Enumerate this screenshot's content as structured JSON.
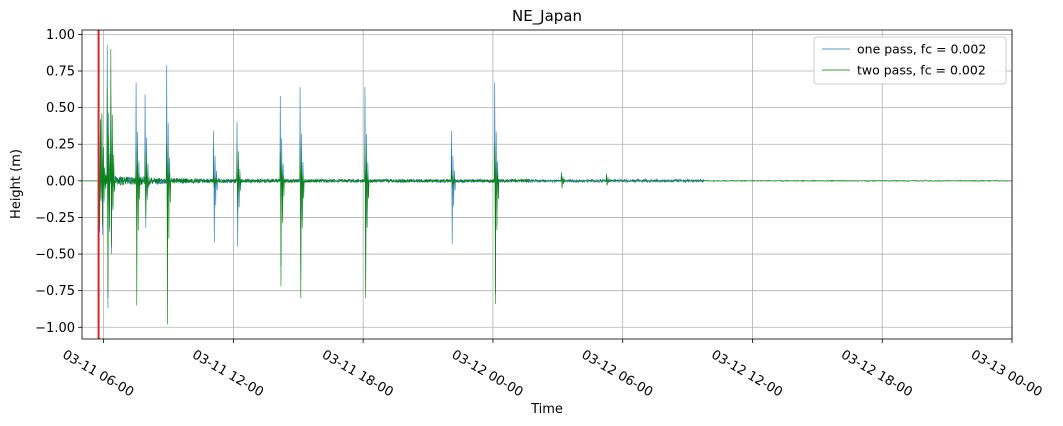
{
  "chart_data": {
    "type": "line",
    "title": "NE_Japan",
    "xlabel": "Time",
    "ylabel": "Height (m)",
    "x_axis": {
      "kind": "datetime",
      "range": [
        "2011-03-11 05:00",
        "2011-03-13 00:00"
      ],
      "ticks": [
        "2011-03-11 06:00",
        "2011-03-11 12:00",
        "2011-03-11 18:00",
        "2011-03-12 00:00",
        "2011-03-12 06:00",
        "2011-03-12 12:00",
        "2011-03-12 18:00",
        "2011-03-13 00:00"
      ],
      "tick_labels": [
        "03-11 06-00",
        "03-11 12-00",
        "03-11 18-00",
        "03-12 00-00",
        "03-12 06-00",
        "03-12 12-00",
        "03-12 18-00",
        "03-13 00-00"
      ]
    },
    "y_axis": {
      "range": [
        -1.08,
        1.03
      ],
      "ticks": [
        -1.0,
        -0.75,
        -0.5,
        -0.25,
        0.0,
        0.25,
        0.5,
        0.75,
        1.0
      ],
      "tick_labels": [
        "−1.00",
        "−0.75",
        "−0.50",
        "−0.25",
        "0.00",
        "0.25",
        "0.50",
        "0.75",
        "1.00"
      ]
    },
    "grid": true,
    "legend_position": "top-right",
    "event_marker": {
      "time": "2011-03-11 05:46",
      "color": "#d62728"
    },
    "series": [
      {
        "name": "one pass, fc = 0.002",
        "color": "#1f77b4",
        "line_width": 0.6,
        "data_end": "2011-03-12 09:45",
        "noise": 0.012,
        "spikes": [
          [
            "2011-03-11 05:47",
            0.84,
            -0.35
          ],
          [
            "2011-03-11 05:55",
            0.45,
            -0.37
          ],
          [
            "2011-03-11 06:10",
            0.93,
            -0.87
          ],
          [
            "2011-03-11 06:20",
            0.58,
            -0.5
          ],
          [
            "2011-03-11 07:30",
            0.67,
            -0.28
          ],
          [
            "2011-03-11 07:55",
            0.59,
            -0.32
          ],
          [
            "2011-03-11 08:55",
            0.79,
            -0.36
          ],
          [
            "2011-03-11 11:05",
            0.34,
            -0.42
          ],
          [
            "2011-03-11 12:10",
            0.4,
            -0.45
          ],
          [
            "2011-03-11 14:10",
            0.58,
            -0.58
          ],
          [
            "2011-03-11 15:05",
            0.64,
            -0.68
          ],
          [
            "2011-03-11 18:05",
            0.64,
            -0.73
          ],
          [
            "2011-03-11 22:05",
            0.34,
            -0.43
          ],
          [
            "2011-03-12 00:05",
            0.67,
            -0.77
          ],
          [
            "2011-03-12 03:10",
            0.06,
            -0.05
          ],
          [
            "2011-03-12 05:15",
            0.05,
            -0.03
          ]
        ]
      },
      {
        "name": "two pass, fc = 0.002",
        "color": "#008000",
        "line_width": 0.6,
        "data_end": "2011-03-13 00:00",
        "noise": 0.01,
        "spikes": [
          [
            "2011-03-11 05:47",
            0.84,
            -0.3
          ],
          [
            "2011-03-11 05:55",
            0.46,
            -0.3
          ],
          [
            "2011-03-11 06:10",
            0.63,
            -0.8
          ],
          [
            "2011-03-11 06:20",
            0.9,
            -0.45
          ],
          [
            "2011-03-11 07:30",
            0.22,
            -0.85
          ],
          [
            "2011-03-11 07:55",
            0.2,
            -0.25
          ],
          [
            "2011-03-11 08:55",
            0.25,
            -0.98
          ],
          [
            "2011-03-11 11:05",
            0.05,
            -0.05
          ],
          [
            "2011-03-11 12:10",
            0.2,
            -0.2
          ],
          [
            "2011-03-11 14:10",
            0.2,
            -0.72
          ],
          [
            "2011-03-11 15:05",
            0.22,
            -0.8
          ],
          [
            "2011-03-11 18:05",
            0.24,
            -0.8
          ],
          [
            "2011-03-11 22:05",
            0.08,
            -0.05
          ],
          [
            "2011-03-12 00:05",
            0.24,
            -0.84
          ],
          [
            "2011-03-12 03:10",
            0.05,
            -0.05
          ],
          [
            "2011-03-12 05:15",
            0.04,
            -0.03
          ]
        ]
      }
    ]
  }
}
